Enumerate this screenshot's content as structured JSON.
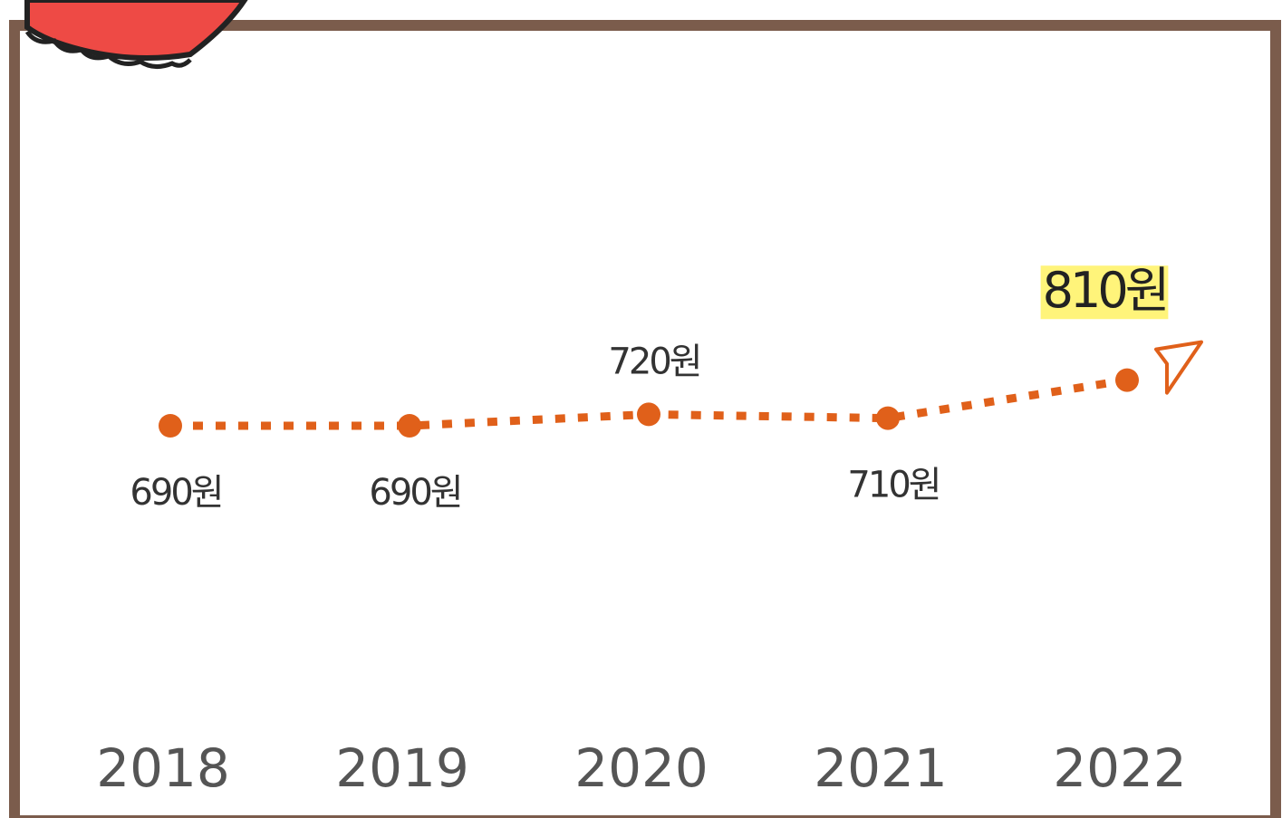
{
  "chart_data": {
    "type": "line",
    "categories": [
      "2018",
      "2019",
      "2020",
      "2021",
      "2022"
    ],
    "values": [
      690,
      690,
      720,
      710,
      810
    ],
    "value_labels": [
      "690원",
      "690원",
      "720원",
      "710원",
      "810원"
    ],
    "color": "#e0601a"
  }
}
